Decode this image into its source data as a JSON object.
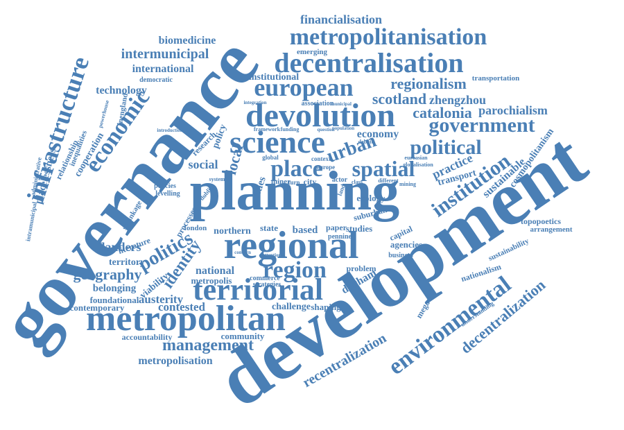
{
  "colors": {
    "word": "#4a7fb5",
    "background": "#ffffff"
  },
  "words": {
    "development": "development",
    "governance": "governance",
    "planning": "planning",
    "regional": "regional",
    "metropolitan": "metropolitan",
    "devolution": "devolution",
    "decentralisation": "decentralisation",
    "metropolitanisation": "metropolitanisation",
    "science": "science",
    "territorial": "territorial",
    "environmental": "environmental",
    "infrastructure": "infrastructure",
    "economic": "economic",
    "european": "european",
    "government": "government",
    "political": "political",
    "spatial": "spatial",
    "place": "place",
    "urban": "urban",
    "institution": "institution",
    "region": "region",
    "politics": "politics",
    "identity": "identity",
    "geography": "geography",
    "management": "management",
    "decentralization": "decentralization",
    "recentralization": "recentralization",
    "metropolisation": "metropolisation",
    "financialisation": "financialisation",
    "intermunicipal": "intermunicipal",
    "biomedicine": "biomedicine",
    "international": "international",
    "regionalism": "regionalism",
    "scotland": "scotland",
    "zhengzhou": "zhengzhou",
    "catalonia": "catalonia",
    "parochialism": "parochialism",
    "technology": "technology",
    "cooperation": "cooperation",
    "inequalities": "inequalities",
    "relationship": "relationship",
    "placelessness": "placelessness",
    "institutional": "institutional",
    "economy": "economy",
    "practice": "practice",
    "sustainable": "sustainable",
    "cosmopolitanism": "cosmopolitanism",
    "transport": "transport",
    "flanders": "flanders",
    "literature": "literature",
    "territory": "territory",
    "viability": "viability",
    "belonging": "belonging",
    "foundational": "foundational",
    "contemporary": "contemporary",
    "austerity": "austerity",
    "contested": "contested",
    "accountability": "accountability",
    "community": "community",
    "national": "national",
    "metropolis": "metropolis",
    "commerce": "commerce",
    "strategies": "strategies",
    "challenge": "challenge",
    "shaping": "shaping",
    "durham": "durham",
    "problem": "problem",
    "northern": "northern",
    "state": "state",
    "based": "based",
    "paper": "paper",
    "studies": "studies",
    "agencies": "agencies",
    "capital": "capital",
    "megacity": "megacity",
    "nationalism": "nationalism",
    "sustainability": "sustainability",
    "topopoetics": "topopoetics",
    "arrangement": "arrangement",
    "social": "social",
    "local": "local",
    "cities": "cities",
    "ecology": "ecology",
    "london": "london",
    "processes": "processes",
    "research": "research",
    "policy": "policy",
    "transportation": "transportation",
    "emerging": "emerging",
    "democratic": "democratic",
    "association": "association",
    "suburban": "suburban",
    "levelling": "levelling",
    "policies": "policies",
    "inengland": "inengland",
    "administrative": "administrative",
    "intramunicipal": "intramunicipal",
    "shrinkage": "shrinkage",
    "pennine": "pennine",
    "business": "business",
    "understanding": "understanding",
    "actor": "actor",
    "city": "city",
    "miner": "miner",
    "global": "global",
    "context": "context",
    "europe": "europe",
    "turn": "turn",
    "land": "land",
    "class": "class",
    "mining": "mining",
    "different": "different",
    "euroasian": "euroasian",
    "globalisation": "globalisation",
    "debate": "debate",
    "system": "system",
    "framework": "framework",
    "funding": "funding",
    "dublin": "dublin",
    "question": "question",
    "population": "population",
    "municipal": "municipal",
    "powerhouse": "powerhouse",
    "integration": "integration",
    "introduction": "introduction",
    "concern": "concern",
    "attention": "attention"
  }
}
